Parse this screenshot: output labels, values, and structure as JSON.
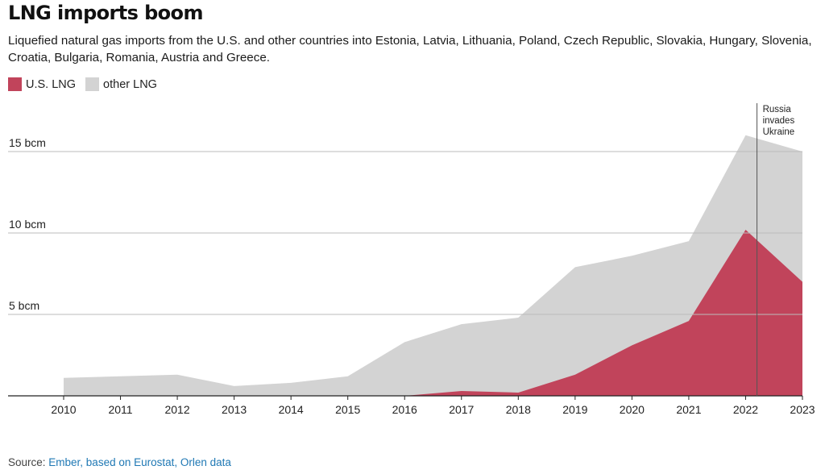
{
  "title": "LNG imports boom",
  "subtitle": "Liquefied natural gas imports from the U.S. and other countries into Estonia, Latvia, Lithuania, Poland, Czech Republic, Slovakia, Hungary, Slovenia, Croatia, Bulgaria, Romania, Austria and Greece.",
  "legend": {
    "us_label": "U.S. LNG",
    "other_label": "other LNG"
  },
  "source": {
    "prefix": "Source: ",
    "link_text": "Ember, based on Eurostat, Orlen data"
  },
  "colors": {
    "us": "#c1445b",
    "other": "#d3d3d3",
    "grid": "#bbbbbb",
    "link": "#1f78b4"
  },
  "chart_data": {
    "type": "area",
    "stacked": true,
    "title": "LNG imports boom",
    "xlabel": "",
    "ylabel": "",
    "x": [
      2010,
      2011,
      2012,
      2013,
      2014,
      2015,
      2016,
      2017,
      2018,
      2019,
      2020,
      2021,
      2022,
      2023
    ],
    "x_tick_labels": [
      "2010",
      "2011",
      "2012",
      "2013",
      "2014",
      "2015",
      "2016",
      "2017",
      "2018",
      "2019",
      "2020",
      "2021",
      "2022",
      "2023"
    ],
    "ylim": [
      0,
      18
    ],
    "y_ticks": [
      5,
      10,
      15
    ],
    "y_tick_labels": [
      "5 bcm",
      "10 bcm",
      "15 bcm"
    ],
    "grid": "horizontal",
    "legend_position": "top-left",
    "series": [
      {
        "name": "U.S. LNG",
        "values": [
          0,
          0,
          0,
          0,
          0,
          0,
          0,
          0.3,
          0.2,
          1.3,
          3.1,
          4.6,
          10.2,
          7.0
        ]
      },
      {
        "name": "other LNG",
        "values": [
          1.1,
          1.2,
          1.3,
          0.6,
          0.8,
          1.2,
          3.3,
          4.1,
          4.6,
          6.6,
          5.5,
          4.9,
          5.8,
          8.0
        ]
      }
    ],
    "totals": [
      1.1,
      1.2,
      1.3,
      0.6,
      0.8,
      1.2,
      3.3,
      4.4,
      4.8,
      7.9,
      8.6,
      9.5,
      16.0,
      15.0
    ],
    "annotation": {
      "x": 2022.2,
      "text_lines": [
        "Russia",
        "invades",
        "Ukraine"
      ]
    }
  }
}
